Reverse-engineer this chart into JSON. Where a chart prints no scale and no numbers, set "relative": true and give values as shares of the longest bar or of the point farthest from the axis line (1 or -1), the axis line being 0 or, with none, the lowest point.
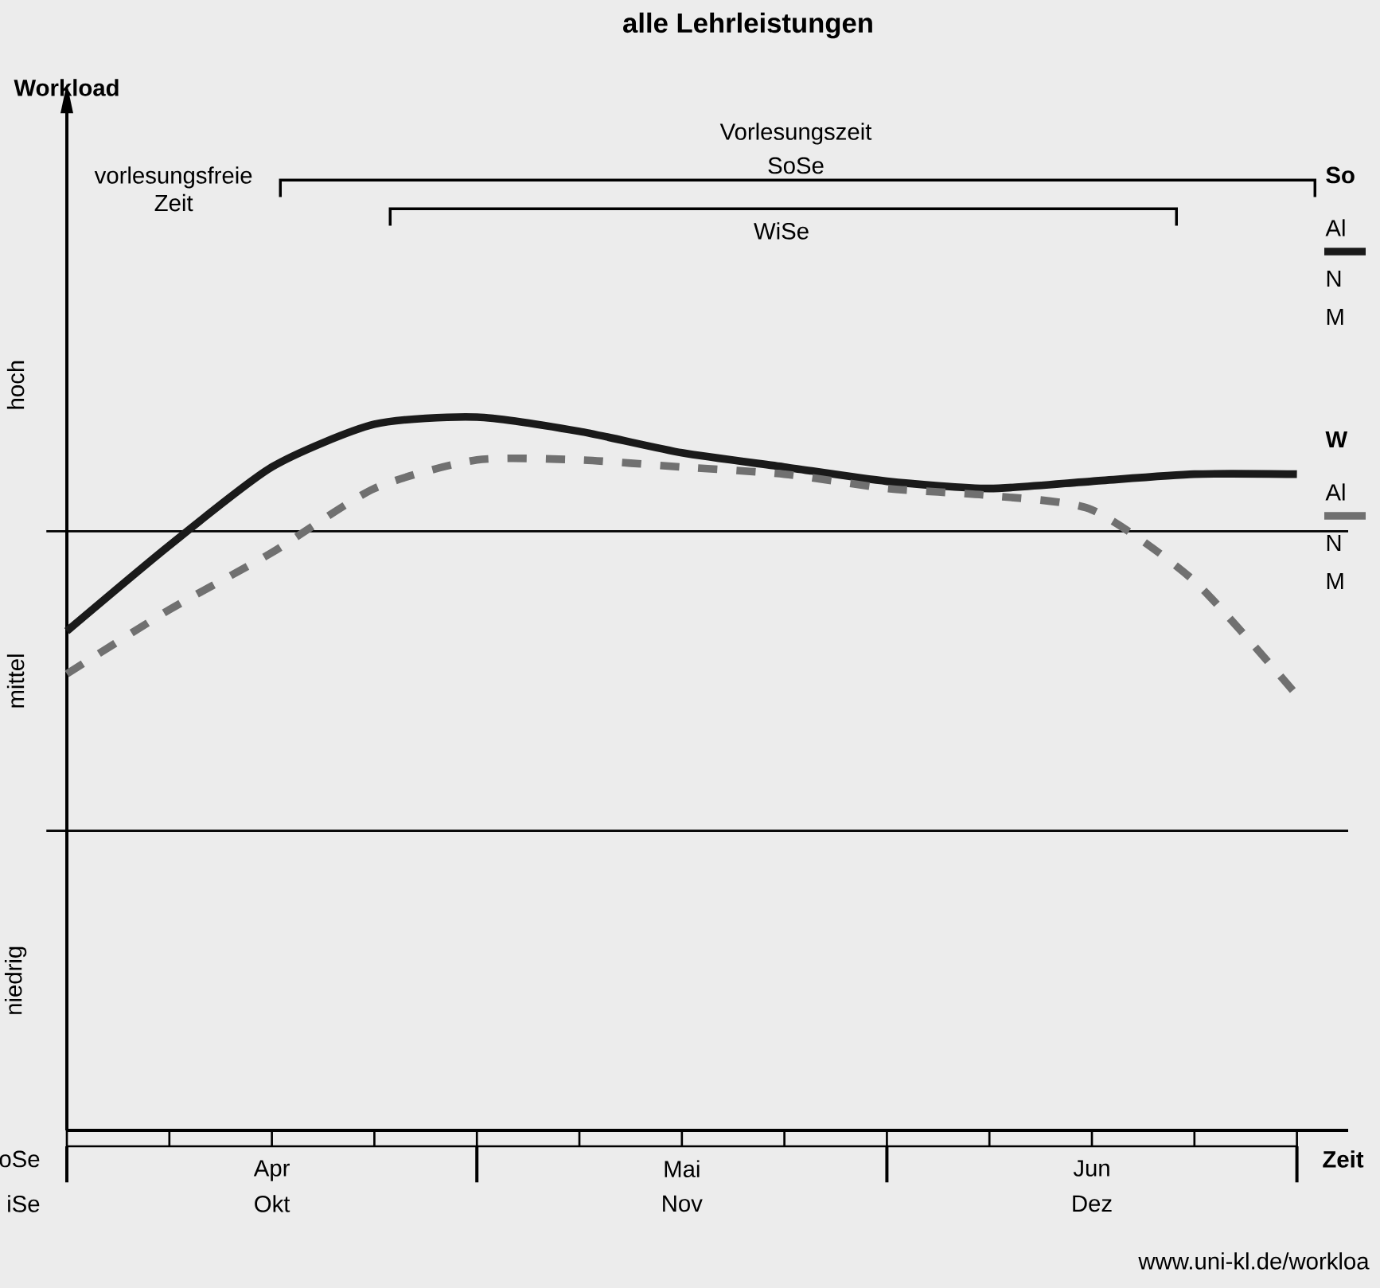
{
  "chart_data": {
    "type": "line",
    "title": "alle Lehrleistungen",
    "xlabel": "Zeit",
    "relative": true,
    "categories": [
      null,
      null,
      "Apr",
      null,
      null,
      null,
      "Mai",
      null,
      null,
      null,
      "Jun",
      null,
      null
    ],
    "series": [
      {
        "name": "Al",
        "color": "#1a1a1a",
        "line_style": "solid",
        "values": [
          0.7,
          0.82,
          0.93,
          0.99,
          1.0,
          0.98,
          0.95,
          0.93,
          0.91,
          0.9,
          0.91,
          0.92,
          0.92
        ]
      },
      {
        "name": "Al",
        "color": "#707070",
        "line_style": "dashed",
        "values": [
          0.64,
          0.73,
          0.81,
          0.9,
          0.94,
          0.94,
          0.93,
          0.92,
          0.9,
          0.89,
          0.87,
          0.77,
          0.61
        ]
      }
    ],
    "ref_lines": [
      {
        "axis": "y",
        "value": 0.42
      },
      {
        "axis": "y",
        "value": 0.84
      }
    ],
    "annotations": [
      "Vorlesungszeit",
      "vorlesungsfreie Zeit",
      "oSe",
      "iSe",
      "Okt",
      "Nov",
      "Dez",
      "So",
      "N",
      "M",
      "W",
      "N",
      "M",
      "www.uni-kl.de/workloa",
      "SoSe",
      "WiSe",
      "niedrig",
      "mittel",
      "hoch",
      "Workload"
    ],
    "legend": "right"
  }
}
